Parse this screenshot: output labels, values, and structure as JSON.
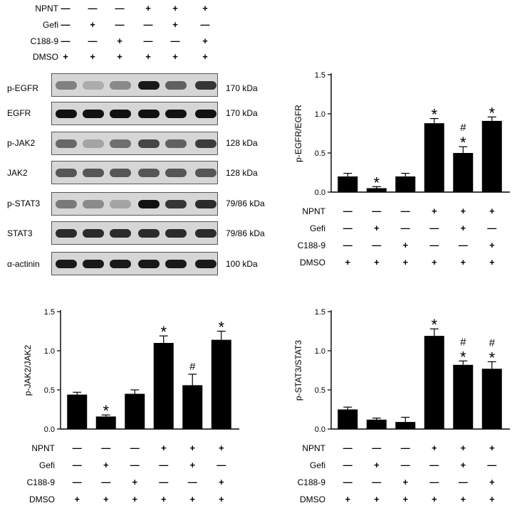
{
  "treatment_rows": [
    "NPNT",
    "Gefi",
    "C188-9",
    "DMSO"
  ],
  "treatment_matrix": [
    [
      "—",
      "—",
      "—",
      "+",
      "+",
      "+"
    ],
    [
      "—",
      "+",
      "—",
      "—",
      "+",
      "—"
    ],
    [
      "—",
      "—",
      "+",
      "—",
      "—",
      "+"
    ],
    [
      "+",
      "+",
      "+",
      "+",
      "+",
      "+"
    ]
  ],
  "western_blot": [
    {
      "protein": "p-EGFR",
      "mw": "170 kDa",
      "intensity": [
        0.35,
        0.1,
        0.3,
        0.95,
        0.55,
        0.8
      ]
    },
    {
      "protein": "EGFR",
      "mw": "170 kDa",
      "intensity": [
        1,
        1,
        1,
        1,
        1,
        1
      ]
    },
    {
      "protein": "p-JAK2",
      "mw": "128 kDa",
      "intensity": [
        0.5,
        0.15,
        0.45,
        0.7,
        0.55,
        0.75
      ]
    },
    {
      "protein": "JAK2",
      "mw": "128 kDa",
      "intensity": [
        0.6,
        0.6,
        0.6,
        0.6,
        0.6,
        0.6
      ]
    },
    {
      "protein": "p-STAT3",
      "mw": "79/86 kDa",
      "intensity": [
        0.4,
        0.3,
        0.15,
        1,
        0.8,
        0.85
      ]
    },
    {
      "protein": "STAT3",
      "mw": "79/86 kDa",
      "intensity": [
        0.85,
        0.85,
        0.85,
        0.85,
        0.85,
        0.85
      ]
    },
    {
      "protein": "α-actinin",
      "mw": "100 kDa",
      "intensity": [
        0.95,
        0.95,
        0.95,
        0.95,
        0.95,
        0.95
      ]
    }
  ],
  "chart_data": [
    {
      "type": "bar",
      "ylabel": "p-EGFR/EGFR",
      "ylim": [
        0,
        1.5
      ],
      "yticks": [
        "0.0",
        "0.5",
        "1.0",
        "1.5"
      ],
      "values": [
        0.2,
        0.05,
        0.2,
        0.88,
        0.5,
        0.91
      ],
      "errors": [
        0.04,
        0.02,
        0.04,
        0.06,
        0.08,
        0.05
      ],
      "annotations": [
        "",
        "*",
        "",
        "*",
        "#\n*",
        "*"
      ]
    },
    {
      "type": "bar",
      "ylabel": "p-JAK2/JAK2",
      "ylim": [
        0,
        1.5
      ],
      "yticks": [
        "0.0",
        "0.5",
        "1.0",
        "1.5"
      ],
      "values": [
        0.44,
        0.16,
        0.45,
        1.1,
        0.56,
        1.14
      ],
      "errors": [
        0.03,
        0.02,
        0.05,
        0.09,
        0.14,
        0.11
      ],
      "annotations": [
        "",
        "*",
        "",
        "*",
        "#",
        "*"
      ]
    },
    {
      "type": "bar",
      "ylabel": "p-STAT3/STAT3",
      "ylim": [
        0,
        1.5
      ],
      "yticks": [
        "0.0",
        "0.5",
        "1.0",
        "1.5"
      ],
      "values": [
        0.25,
        0.12,
        0.09,
        1.19,
        0.82,
        0.77
      ],
      "errors": [
        0.03,
        0.02,
        0.06,
        0.09,
        0.05,
        0.09
      ],
      "annotations": [
        "",
        "",
        "",
        "*",
        "#\n*",
        "#\n*"
      ]
    }
  ]
}
